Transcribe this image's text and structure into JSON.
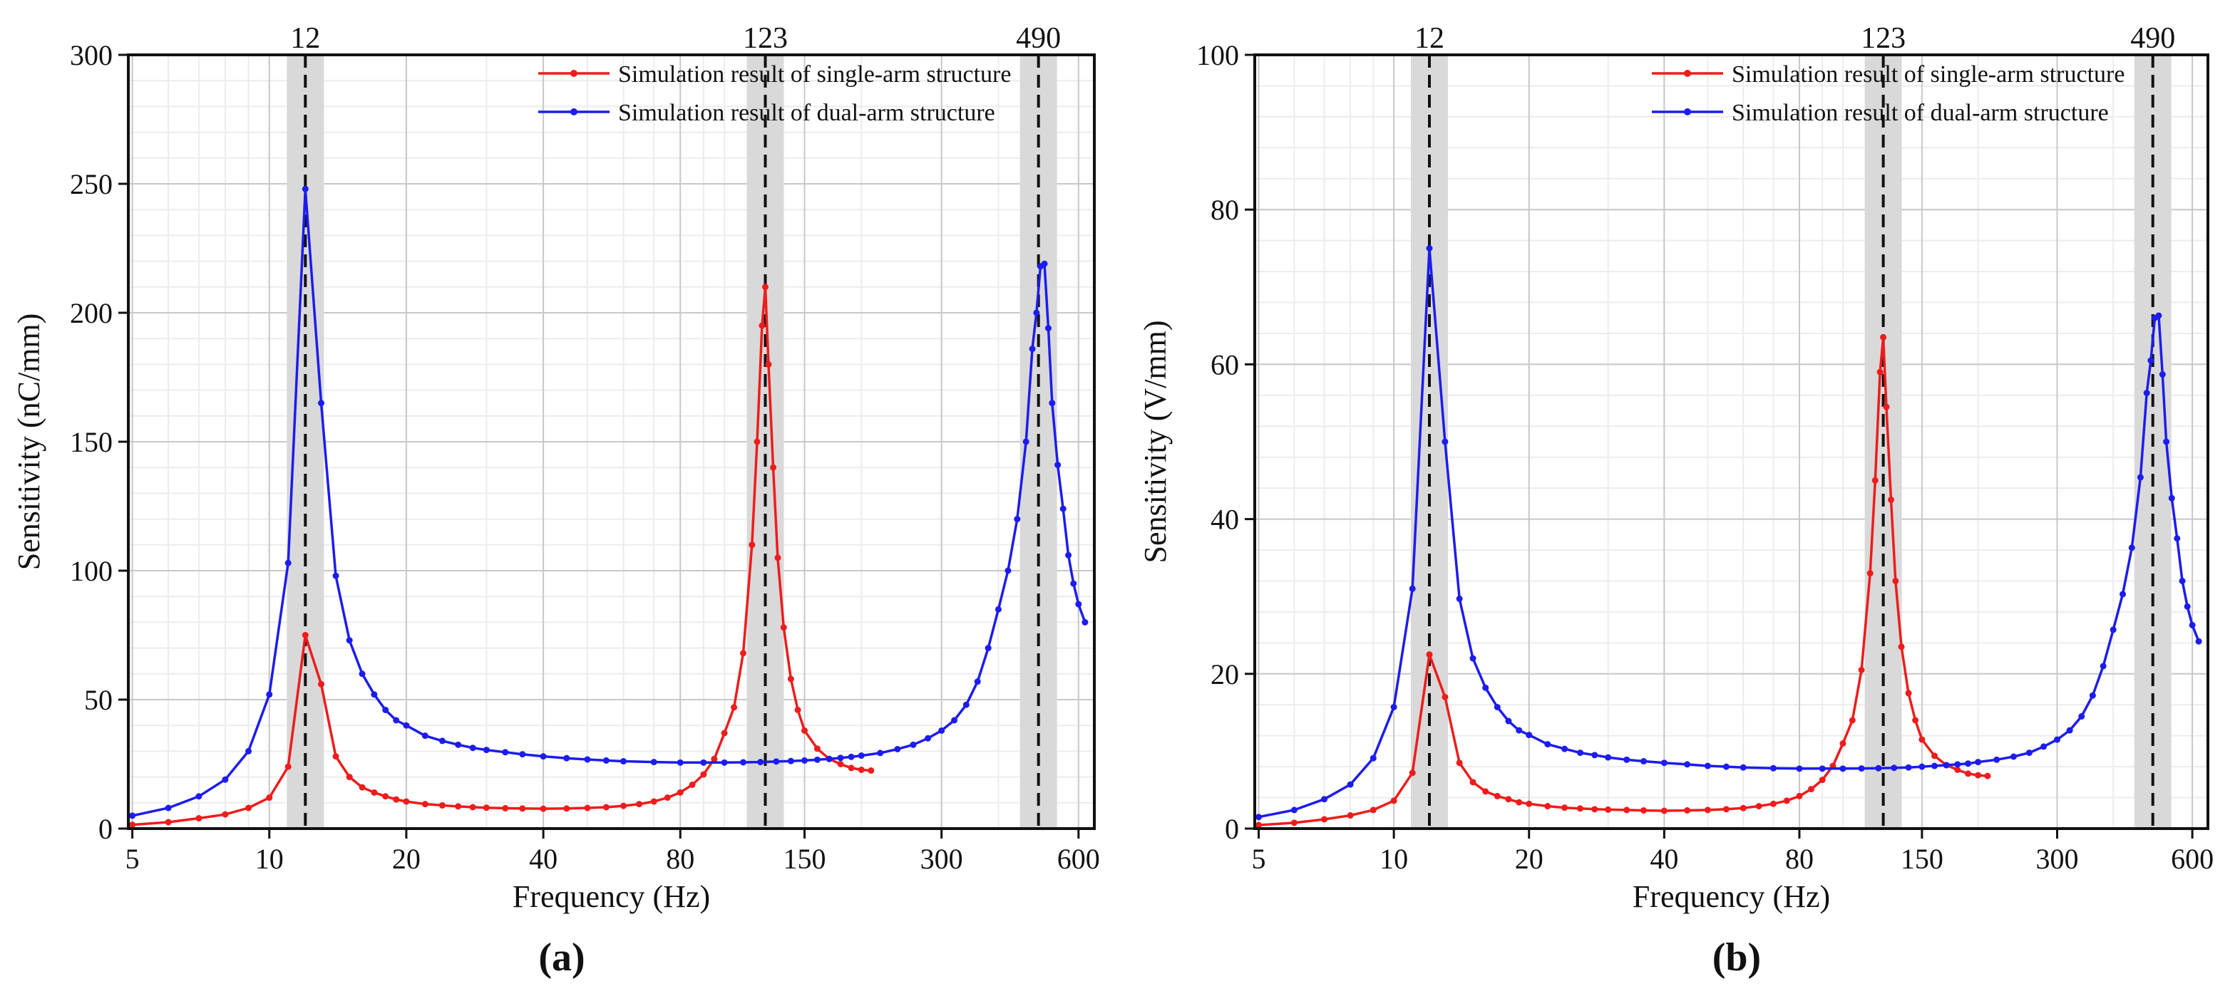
{
  "chart_data": [
    {
      "type": "line",
      "panel_label": "(a)",
      "title": "",
      "xlabel": "Frequency (Hz)",
      "ylabel": "Sensitivity (nC/mm)",
      "xscale": "log",
      "xlim": [
        4.9,
        650
      ],
      "ylim": [
        0,
        300
      ],
      "xticks": [
        5,
        10,
        20,
        40,
        80,
        150,
        300,
        600
      ],
      "yticks": [
        0,
        50,
        100,
        150,
        200,
        250,
        300
      ],
      "grid": true,
      "legend_position": "top-right",
      "peak_markers": [
        {
          "x": 12,
          "label": "12"
        },
        {
          "x": 123,
          "label": "123"
        },
        {
          "x": 490,
          "label": "490"
        }
      ],
      "series": [
        {
          "name": "Simulation result of single-arm structure",
          "color": "#ee1c1c",
          "x": [
            5,
            6,
            7,
            8,
            9,
            10,
            11,
            12,
            13,
            14,
            15,
            16,
            17,
            18,
            19,
            20,
            22,
            24,
            26,
            28,
            30,
            33,
            36,
            40,
            45,
            50,
            55,
            60,
            65,
            70,
            75,
            80,
            85,
            90,
            95,
            100,
            105,
            110,
            115,
            118,
            121,
            123,
            125,
            128,
            131,
            135,
            140,
            145,
            150,
            160,
            170,
            180,
            190,
            200,
            210
          ],
          "y": [
            1.5,
            2.5,
            4,
            5.5,
            8,
            12,
            24,
            75,
            56,
            28,
            20,
            16,
            14,
            12.5,
            11.3,
            10.5,
            9.5,
            9,
            8.6,
            8.3,
            8.1,
            7.9,
            7.8,
            7.7,
            7.8,
            8,
            8.3,
            8.8,
            9.5,
            10.5,
            12,
            14,
            17,
            21,
            27,
            37,
            47,
            68,
            110,
            150,
            195,
            210,
            180,
            140,
            105,
            78,
            58,
            46,
            38,
            31,
            27,
            25,
            23.5,
            22.8,
            22.5
          ]
        },
        {
          "name": "Simulation result of dual-arm structure",
          "color": "#1c1cee",
          "x": [
            5,
            6,
            7,
            8,
            9,
            10,
            11,
            12,
            13,
            14,
            15,
            16,
            17,
            18,
            19,
            20,
            22,
            24,
            26,
            28,
            30,
            33,
            36,
            40,
            45,
            50,
            55,
            60,
            70,
            80,
            90,
            100,
            110,
            120,
            130,
            140,
            150,
            160,
            170,
            180,
            190,
            200,
            220,
            240,
            260,
            280,
            300,
            320,
            340,
            360,
            380,
            400,
            420,
            440,
            460,
            475,
            485,
            495,
            505,
            515,
            525,
            540,
            555,
            570,
            585,
            600,
            620
          ],
          "y": [
            5,
            8,
            12.5,
            19,
            30,
            52,
            103,
            248,
            165,
            98,
            73,
            60,
            52,
            46,
            42,
            40,
            36,
            34,
            32.5,
            31.3,
            30.5,
            29.6,
            28.8,
            28,
            27.3,
            26.8,
            26.4,
            26.1,
            25.8,
            25.6,
            25.6,
            25.6,
            25.7,
            25.8,
            26,
            26.2,
            26.4,
            26.7,
            27,
            27.4,
            27.8,
            28.3,
            29.3,
            30.8,
            32.5,
            35,
            38,
            42,
            48,
            57,
            70,
            85,
            100,
            120,
            150,
            186,
            200,
            218,
            219,
            194,
            165,
            141,
            124,
            106,
            95,
            87,
            80
          ]
        }
      ]
    },
    {
      "type": "line",
      "panel_label": "(b)",
      "title": "",
      "xlabel": "Frequency (Hz)",
      "ylabel": "Sensitivity (V/mm)",
      "xscale": "log",
      "xlim": [
        4.9,
        650
      ],
      "ylim": [
        0,
        100
      ],
      "xticks": [
        5,
        10,
        20,
        40,
        80,
        150,
        300,
        600
      ],
      "yticks": [
        0,
        20,
        40,
        60,
        80,
        100
      ],
      "grid": true,
      "legend_position": "top-right",
      "peak_markers": [
        {
          "x": 12,
          "label": "12"
        },
        {
          "x": 123,
          "label": "123"
        },
        {
          "x": 490,
          "label": "490"
        }
      ],
      "series": [
        {
          "name": "Simulation result of single-arm structure",
          "color": "#ee1c1c",
          "x": [
            5,
            6,
            7,
            8,
            9,
            10,
            11,
            12,
            13,
            14,
            15,
            16,
            17,
            18,
            19,
            20,
            22,
            24,
            26,
            28,
            30,
            33,
            36,
            40,
            45,
            50,
            55,
            60,
            65,
            70,
            75,
            80,
            85,
            90,
            95,
            100,
            105,
            110,
            115,
            118,
            121,
            123,
            125,
            128,
            131,
            135,
            140,
            145,
            150,
            160,
            170,
            180,
            190,
            200,
            210
          ],
          "y": [
            0.45,
            0.75,
            1.2,
            1.7,
            2.4,
            3.6,
            7.2,
            22.5,
            17,
            8.5,
            6,
            4.8,
            4.2,
            3.8,
            3.4,
            3.2,
            2.9,
            2.7,
            2.6,
            2.5,
            2.45,
            2.4,
            2.35,
            2.3,
            2.35,
            2.4,
            2.5,
            2.65,
            2.9,
            3.2,
            3.6,
            4.2,
            5.1,
            6.3,
            8.1,
            11,
            14,
            20.5,
            33,
            45,
            59,
            63.5,
            54.5,
            42.5,
            32,
            23.5,
            17.5,
            14,
            11.5,
            9.4,
            8.2,
            7.6,
            7.1,
            6.9,
            6.8
          ]
        },
        {
          "name": "Simulation result of dual-arm structure",
          "color": "#1c1cee",
          "x": [
            5,
            6,
            7,
            8,
            9,
            10,
            11,
            12,
            13,
            14,
            15,
            16,
            17,
            18,
            19,
            20,
            22,
            24,
            26,
            28,
            30,
            33,
            36,
            40,
            45,
            50,
            55,
            60,
            70,
            80,
            90,
            100,
            110,
            120,
            130,
            140,
            150,
            160,
            170,
            180,
            190,
            200,
            220,
            240,
            260,
            280,
            300,
            320,
            340,
            360,
            380,
            400,
            420,
            440,
            460,
            475,
            485,
            495,
            505,
            515,
            525,
            540,
            555,
            570,
            585,
            600,
            620
          ],
          "y": [
            1.5,
            2.4,
            3.8,
            5.7,
            9.1,
            15.7,
            31,
            75,
            50,
            29.7,
            22,
            18.2,
            15.7,
            13.9,
            12.7,
            12.1,
            10.9,
            10.3,
            9.8,
            9.5,
            9.2,
            8.9,
            8.7,
            8.5,
            8.3,
            8.1,
            8,
            7.9,
            7.8,
            7.75,
            7.75,
            7.75,
            7.77,
            7.8,
            7.85,
            7.9,
            8,
            8.1,
            8.2,
            8.3,
            8.4,
            8.6,
            8.9,
            9.3,
            9.8,
            10.6,
            11.5,
            12.7,
            14.5,
            17.2,
            21,
            25.7,
            30.3,
            36.3,
            45.4,
            56.3,
            60.5,
            66,
            66.3,
            58.7,
            50,
            42.7,
            37.5,
            32,
            28.7,
            26.3,
            24.2
          ]
        }
      ]
    }
  ]
}
